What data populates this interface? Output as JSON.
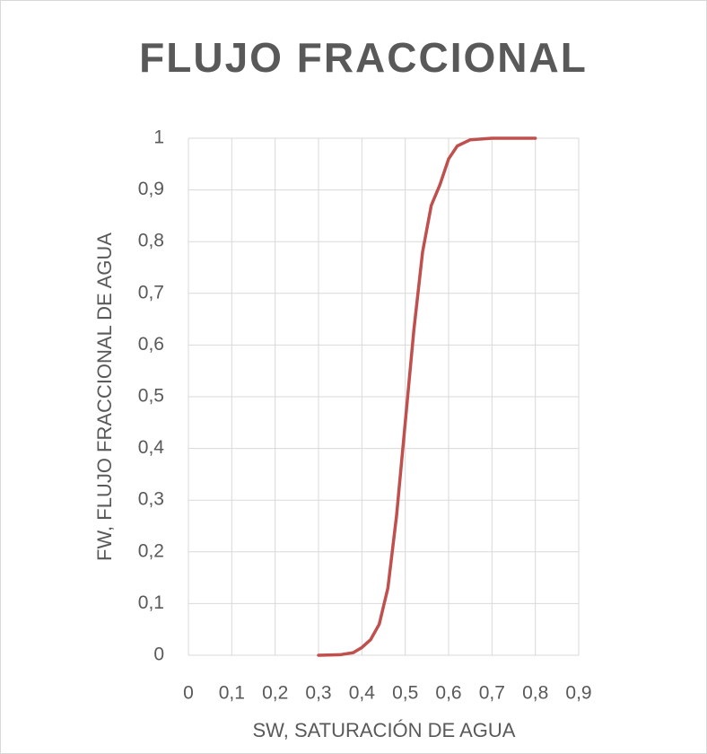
{
  "chart_data": {
    "type": "line",
    "title": "FLUJO FRACCIONAL",
    "xlabel": "SW, SATURACIÓN DE AGUA",
    "ylabel": "FW, FLUJO FRACCIONAL DE AGUA",
    "x": [
      0.3,
      0.35,
      0.38,
      0.4,
      0.42,
      0.44,
      0.46,
      0.48,
      0.5,
      0.52,
      0.54,
      0.56,
      0.58,
      0.6,
      0.62,
      0.65,
      0.7,
      0.75,
      0.8
    ],
    "series": [
      {
        "color": "#c0504d",
        "values": [
          0,
          0.001,
          0.005,
          0.015,
          0.03,
          0.06,
          0.13,
          0.27,
          0.45,
          0.63,
          0.78,
          0.87,
          0.91,
          0.96,
          0.985,
          0.997,
          1,
          1,
          1
        ]
      }
    ],
    "xlim": [
      0,
      0.9
    ],
    "xticks": [
      0,
      {
        "value": 0.1,
        "label": "0,1"
      },
      {
        "value": 0.2,
        "label": "0,2"
      },
      {
        "value": 0.3,
        "label": "0,3"
      },
      {
        "value": 0.4,
        "label": "0,4"
      },
      {
        "value": 0.5,
        "label": "0,5"
      },
      {
        "value": 0.6,
        "label": "0,6"
      },
      {
        "value": 0.7,
        "label": "0,7"
      },
      {
        "value": 0.8,
        "label": "0,8"
      },
      {
        "value": 0.9,
        "label": "0,9"
      }
    ],
    "ylim": [
      0,
      1
    ],
    "yticks": [
      0,
      {
        "value": 0.1,
        "label": "0,1"
      },
      {
        "value": 0.2,
        "label": "0,2"
      },
      {
        "value": 0.3,
        "label": "0,3"
      },
      {
        "value": 0.4,
        "label": "0,4"
      },
      {
        "value": 0.5,
        "label": "0,5"
      },
      {
        "value": 0.6,
        "label": "0,6"
      },
      {
        "value": 0.7,
        "label": "0,7"
      },
      {
        "value": 0.8,
        "label": "0,8"
      },
      {
        "value": 0.9,
        "label": "0,9"
      },
      1
    ],
    "grid": true
  }
}
